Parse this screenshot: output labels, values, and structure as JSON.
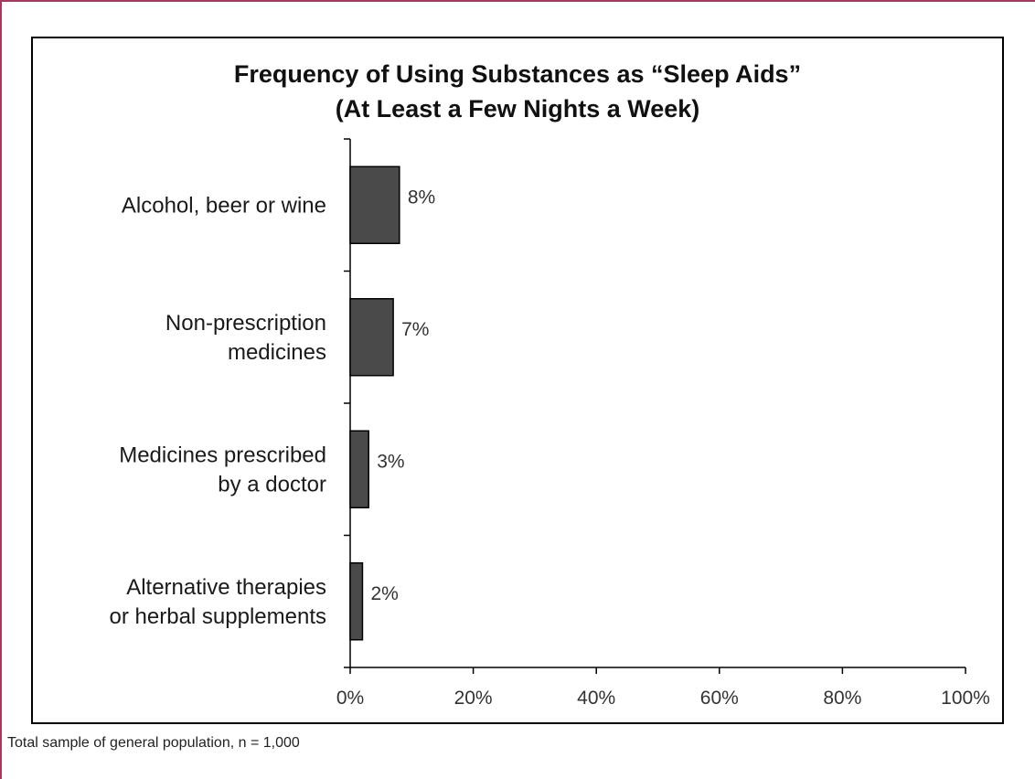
{
  "chart_data": {
    "type": "bar",
    "orientation": "horizontal",
    "title": [
      "Frequency of Using Substances as “Sleep Aids”",
      "(At Least a Few Nights a Week)"
    ],
    "categories": [
      [
        "Alcohol, beer or wine"
      ],
      [
        "Non-prescription",
        "medicines"
      ],
      [
        "Medicines prescribed",
        "by a doctor"
      ],
      [
        "Alternative therapies",
        "or herbal supplements"
      ]
    ],
    "values": [
      8,
      7,
      3,
      2
    ],
    "data_labels": [
      "8%",
      "7%",
      "3%",
      "2%"
    ],
    "xlim": [
      0,
      100
    ],
    "xticks": [
      0,
      20,
      40,
      60,
      80,
      100
    ],
    "xtick_labels": [
      "0%",
      "20%",
      "40%",
      "60%",
      "80%",
      "100%"
    ],
    "grid": false,
    "legend": "none",
    "bar_color": "#4a4a4a",
    "xlabel": "",
    "ylabel": ""
  },
  "footnote": "Total sample of general population, n = 1,000"
}
